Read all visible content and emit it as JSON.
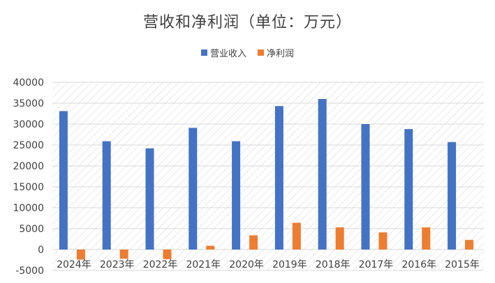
{
  "chart_data": {
    "type": "bar",
    "title": "营收和净利润（单位：万元）",
    "categories": [
      "2024年",
      "2023年",
      "2022年",
      "2021年",
      "2020年",
      "2019年",
      "2018年",
      "2017年",
      "2016年",
      "2015年"
    ],
    "series": [
      {
        "name": "营业收入",
        "color": "#4472C4",
        "values": [
          33100,
          25900,
          24200,
          29100,
          25900,
          34300,
          36000,
          30000,
          28800,
          25700
        ]
      },
      {
        "name": "净利润",
        "color": "#ED7D31",
        "values": [
          -2400,
          -2200,
          -2300,
          900,
          3400,
          6400,
          5300,
          4100,
          5300,
          2300
        ]
      }
    ],
    "ylim": [
      -5000,
      40000
    ],
    "yticks": [
      40000,
      35000,
      30000,
      25000,
      20000,
      15000,
      10000,
      5000,
      0,
      -5000
    ],
    "grid": true,
    "legend_position": "top"
  }
}
